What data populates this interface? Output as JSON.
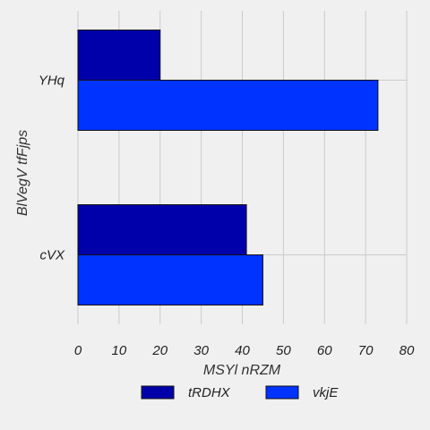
{
  "chart_data": {
    "type": "bar",
    "orientation": "horizontal",
    "categories": [
      "YHq",
      "cVX"
    ],
    "series": [
      {
        "name": "tRDHX",
        "values": [
          20,
          41
        ],
        "color": "#0000aa"
      },
      {
        "name": "vkjE",
        "values": [
          73,
          45
        ],
        "color": "#0033ff"
      }
    ],
    "xlabel": "MSYl nRZM",
    "ylabel": "BlVegV tfFjps",
    "xlim": [
      0,
      80
    ],
    "xticks": [
      0,
      10,
      20,
      30,
      40,
      50,
      60,
      70,
      80
    ],
    "grid": true,
    "legend_position": "bottom-center"
  }
}
